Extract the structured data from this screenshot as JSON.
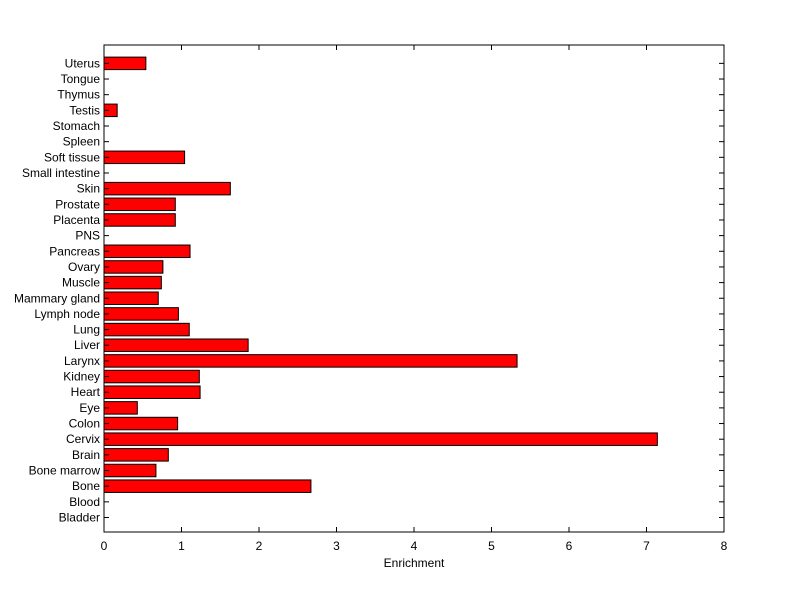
{
  "chart_data": {
    "type": "bar",
    "orientation": "horizontal",
    "title": "",
    "xlabel": "Enrichment",
    "ylabel": "",
    "xlim": [
      0,
      8
    ],
    "xticks": [
      0,
      1,
      2,
      3,
      4,
      5,
      6,
      7,
      8
    ],
    "grid": false,
    "bar_color": "#ff0000",
    "bar_edge_color": "#000000",
    "categories": [
      "Bladder",
      "Blood",
      "Bone",
      "Bone marrow",
      "Brain",
      "Cervix",
      "Colon",
      "Eye",
      "Heart",
      "Kidney",
      "Larynx",
      "Liver",
      "Lung",
      "Lymph node",
      "Mammary gland",
      "Muscle",
      "Ovary",
      "Pancreas",
      "PNS",
      "Placenta",
      "Prostate",
      "Skin",
      "Small intestine",
      "Soft tissue",
      "Spleen",
      "Stomach",
      "Testis",
      "Thymus",
      "Tongue",
      "Uterus"
    ],
    "values": [
      0,
      0,
      2.67,
      0.67,
      0.83,
      7.14,
      0.95,
      0.43,
      1.24,
      1.23,
      5.33,
      1.86,
      1.1,
      0.96,
      0.7,
      0.74,
      0.76,
      1.11,
      0,
      0.92,
      0.92,
      1.63,
      0,
      1.04,
      0,
      0,
      0.17,
      0,
      0,
      0.54
    ]
  }
}
